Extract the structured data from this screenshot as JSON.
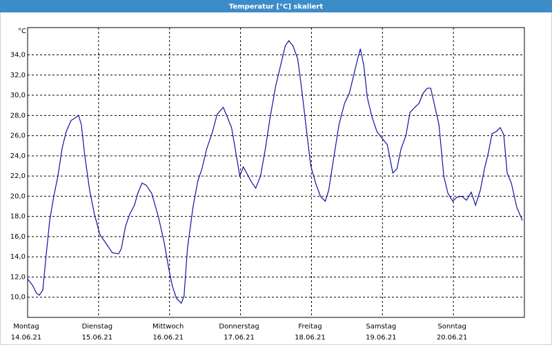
{
  "chart_data": {
    "type": "line",
    "title": "Temperatur [°C] skaliert",
    "y_label": "°C",
    "color": "#1010a0",
    "grid": true,
    "xlim": [
      0,
      7
    ],
    "ylim": [
      8.0,
      36.7
    ],
    "xticks": [
      {
        "value": 0,
        "label": "Montag"
      },
      {
        "value": 1,
        "label": "Dienstag"
      },
      {
        "value": 2,
        "label": "Mittwoch"
      },
      {
        "value": 3,
        "label": "Donnerstag"
      },
      {
        "value": 4,
        "label": "Freitag"
      },
      {
        "value": 5,
        "label": "Samstag"
      },
      {
        "value": 6,
        "label": "Sonntag"
      }
    ],
    "xtick_dates": [
      "14.06.21",
      "15.06.21",
      "16.06.21",
      "17.06.21",
      "18.06.21",
      "19.06.21",
      "20.06.21"
    ],
    "yticks": [
      {
        "value": 10,
        "label": "10,0"
      },
      {
        "value": 12,
        "label": "12,0"
      },
      {
        "value": 14,
        "label": "14,0"
      },
      {
        "value": 16,
        "label": "16,0"
      },
      {
        "value": 18,
        "label": "18,0"
      },
      {
        "value": 20,
        "label": "20,0"
      },
      {
        "value": 22,
        "label": "22,0"
      },
      {
        "value": 24,
        "label": "24,0"
      },
      {
        "value": 26,
        "label": "26,0"
      },
      {
        "value": 28,
        "label": "28,0"
      },
      {
        "value": 30,
        "label": "30,0"
      },
      {
        "value": 32,
        "label": "32,0"
      },
      {
        "value": 34,
        "label": "34,0"
      }
    ],
    "x": [
      0,
      0.068,
      0.126,
      0.165,
      0.214,
      0.262,
      0.311,
      0.369,
      0.427,
      0.485,
      0.544,
      0.612,
      0.68,
      0.718,
      0.757,
      0.806,
      0.874,
      0.942,
      1.019,
      1.117,
      1.194,
      1.282,
      1.32,
      1.379,
      1.437,
      1.505,
      1.553,
      1.612,
      1.67,
      1.748,
      1.845,
      1.922,
      1.99,
      2.039,
      2.097,
      2.165,
      2.204,
      2.252,
      2.33,
      2.398,
      2.456,
      2.524,
      2.602,
      2.67,
      2.718,
      2.757,
      2.816,
      2.874,
      2.932,
      2.99,
      3.039,
      3.087,
      3.146,
      3.214,
      3.282,
      3.35,
      3.417,
      3.495,
      3.573,
      3.631,
      3.68,
      3.738,
      3.806,
      3.864,
      3.932,
      3.99,
      4.058,
      4.126,
      4.194,
      4.243,
      4.311,
      4.388,
      4.466,
      4.534,
      4.592,
      4.65,
      4.689,
      4.738,
      4.786,
      4.854,
      4.922,
      5.0,
      5.068,
      5.146,
      5.204,
      5.262,
      5.33,
      5.388,
      5.456,
      5.515,
      5.573,
      5.631,
      5.68,
      5.728,
      5.796,
      5.864,
      5.922,
      5.99,
      6.049,
      6.117,
      6.184,
      6.252,
      6.311,
      6.379,
      6.437,
      6.495,
      6.544,
      6.602,
      6.66,
      6.709,
      6.757,
      6.816,
      6.893,
      6.971
    ],
    "values": [
      11.8,
      11.2,
      10.4,
      10.2,
      10.7,
      14.2,
      17.6,
      20.0,
      22.0,
      24.7,
      26.4,
      27.5,
      27.8,
      28.0,
      27.1,
      24.0,
      20.6,
      18.2,
      16.2,
      15.2,
      14.4,
      14.3,
      14.8,
      17.0,
      18.2,
      19.1,
      20.3,
      21.3,
      21.1,
      20.3,
      17.9,
      15.5,
      12.8,
      11.1,
      9.9,
      9.4,
      10.1,
      14.8,
      18.9,
      21.5,
      22.7,
      24.7,
      26.3,
      28.1,
      28.5,
      28.8,
      27.8,
      26.8,
      24.4,
      22.0,
      22.9,
      22.3,
      21.5,
      20.8,
      22.0,
      24.7,
      27.8,
      30.9,
      33.2,
      34.9,
      35.4,
      34.9,
      33.6,
      30.5,
      26.4,
      23.0,
      21.3,
      20.0,
      19.5,
      20.6,
      23.7,
      27.1,
      29.2,
      30.2,
      31.9,
      33.6,
      34.6,
      32.9,
      29.8,
      27.8,
      26.4,
      25.7,
      25.1,
      22.3,
      22.7,
      24.7,
      26.0,
      28.3,
      28.8,
      29.2,
      30.2,
      30.7,
      30.7,
      29.2,
      27.1,
      22.0,
      20.3,
      19.5,
      19.9,
      20.0,
      19.6,
      20.4,
      19.1,
      20.6,
      22.7,
      24.4,
      26.2,
      26.4,
      26.8,
      26.1,
      22.3,
      21.3,
      18.9,
      17.6
    ]
  }
}
